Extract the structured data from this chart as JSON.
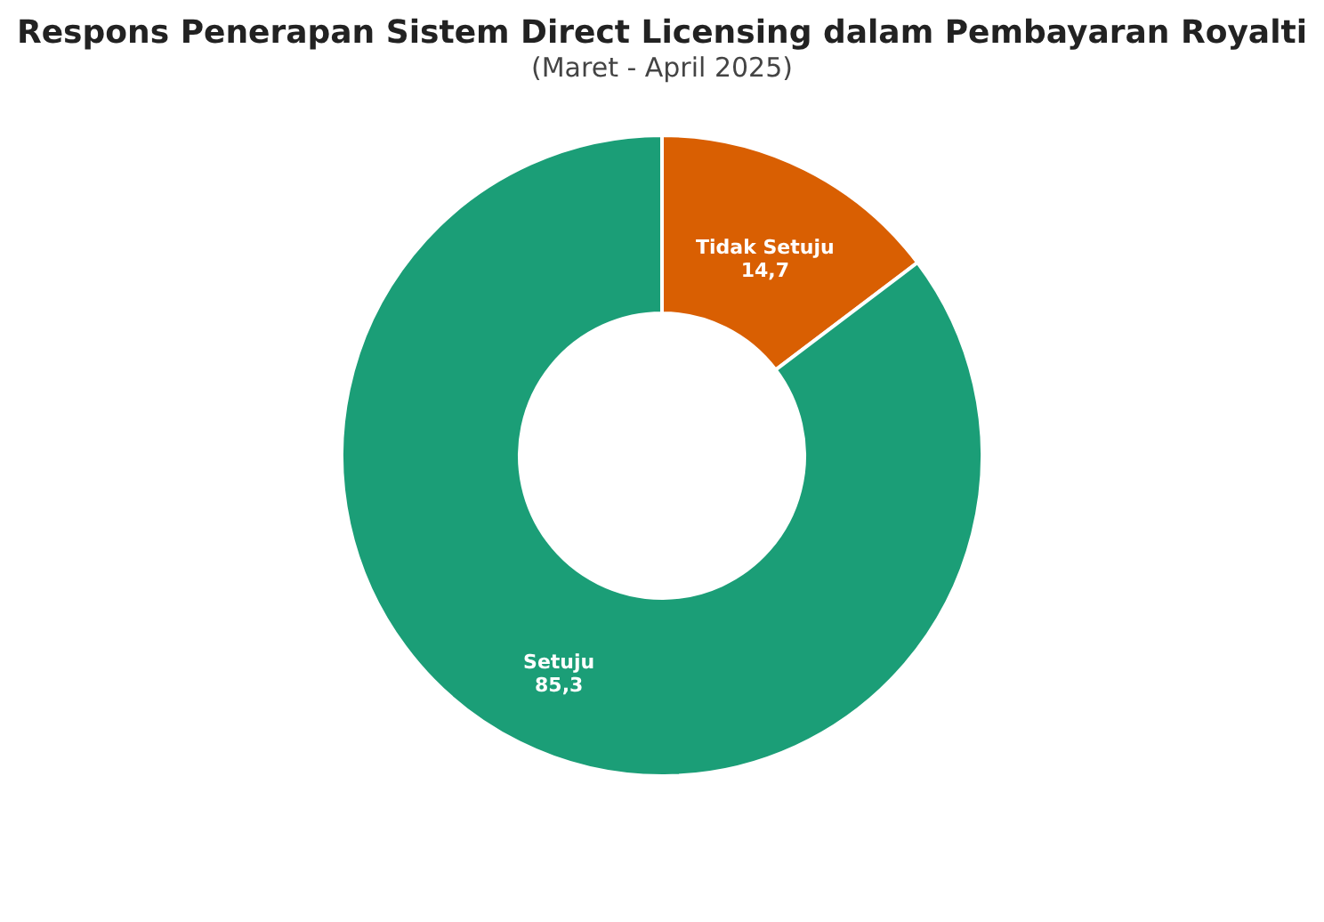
{
  "chart_data": {
    "type": "donut",
    "title": "Respons Penerapan Sistem Direct Licensing dalam Pembayaran Royalti",
    "subtitle": "(Maret - April 2025)",
    "categories": [
      "Tidak Setuju",
      "Setuju"
    ],
    "values": [
      14.7,
      85.3
    ],
    "colors": [
      "#d95f02",
      "#1b9e77"
    ],
    "value_labels": [
      "14,7",
      "85,3"
    ],
    "legend": false
  }
}
